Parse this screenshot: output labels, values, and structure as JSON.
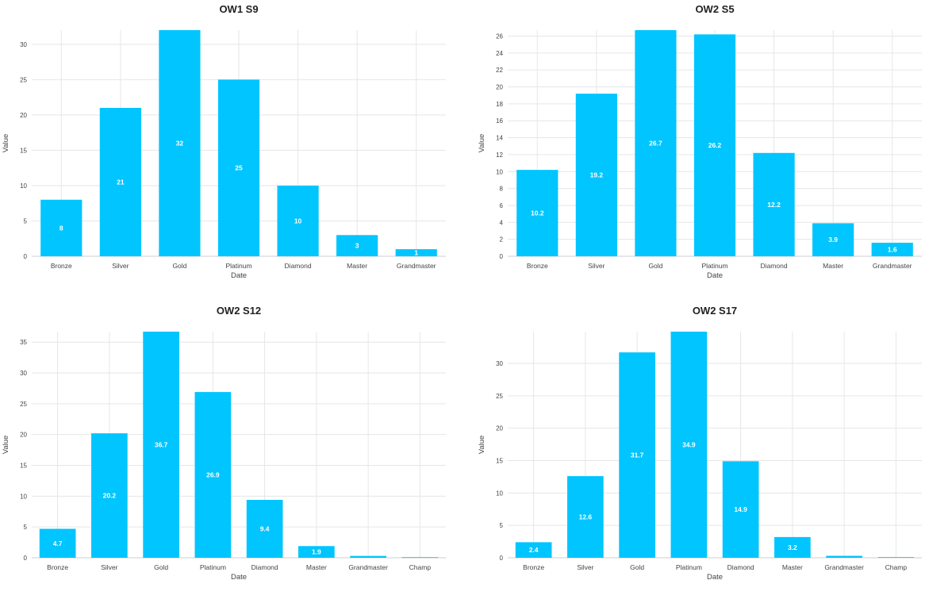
{
  "theme": {
    "bar_color": "#00c5ff",
    "grid_color": "#e6e6e6",
    "label_color": "#ffffff"
  },
  "chart_data": [
    {
      "type": "bar",
      "title": "OW1 S9",
      "xlabel": "Date",
      "ylabel": "Value",
      "categories": [
        "Bronze",
        "Silver",
        "Gold",
        "Platinum",
        "Diamond",
        "Master",
        "Grandmaster"
      ],
      "values": [
        8,
        21,
        32,
        25,
        10,
        3,
        1
      ],
      "data_labels": [
        "8",
        "21",
        "32",
        "25",
        "10",
        "3",
        "1"
      ],
      "ylim": [
        0,
        32
      ],
      "yticks": [
        0,
        5,
        10,
        15,
        20,
        25,
        30
      ],
      "grid": true
    },
    {
      "type": "bar",
      "title": "OW2 S5",
      "xlabel": "Date",
      "ylabel": "Value",
      "categories": [
        "Bronze",
        "Silver",
        "Gold",
        "Platinum",
        "Diamond",
        "Master",
        "Grandmaster"
      ],
      "values": [
        10.2,
        19.2,
        26.7,
        26.2,
        12.2,
        3.9,
        1.6
      ],
      "data_labels": [
        "10.2",
        "19.2",
        "26.7",
        "26.2",
        "12.2",
        "3.9",
        "1.6"
      ],
      "ylim": [
        0,
        26.7
      ],
      "yticks": [
        0,
        2,
        4,
        6,
        8,
        10,
        12,
        14,
        16,
        18,
        20,
        22,
        24,
        26
      ],
      "grid": true
    },
    {
      "type": "bar",
      "title": "OW2 S12",
      "xlabel": "Date",
      "ylabel": "Value",
      "categories": [
        "Bronze",
        "Silver",
        "Gold",
        "Platinum",
        "Diamond",
        "Master",
        "Grandmaster",
        "Champ"
      ],
      "values": [
        4.7,
        20.2,
        36.7,
        26.9,
        9.4,
        1.9,
        0.3,
        0.1
      ],
      "data_labels": [
        "4.7",
        "20.2",
        "36.7",
        "26.9",
        "9.4",
        "1.9",
        "",
        ""
      ],
      "ylim": [
        0,
        36.7
      ],
      "yticks": [
        0,
        5,
        10,
        15,
        20,
        25,
        30,
        35
      ],
      "grid": true
    },
    {
      "type": "bar",
      "title": "OW2 S17",
      "xlabel": "Date",
      "ylabel": "Value",
      "categories": [
        "Bronze",
        "Silver",
        "Gold",
        "Platinum",
        "Diamond",
        "Master",
        "Grandmaster",
        "Champ"
      ],
      "values": [
        2.4,
        12.6,
        31.7,
        34.9,
        14.9,
        3.2,
        0.3,
        0.1
      ],
      "data_labels": [
        "2.4",
        "12.6",
        "31.7",
        "34.9",
        "14.9",
        "3.2",
        "",
        ""
      ],
      "ylim": [
        0,
        34.9
      ],
      "yticks": [
        0,
        5,
        10,
        15,
        20,
        25,
        30
      ],
      "grid": true
    }
  ]
}
